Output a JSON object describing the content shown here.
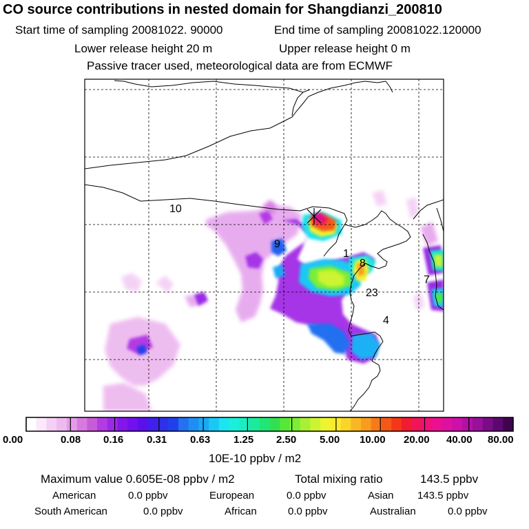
{
  "header": {
    "title": "CO  source contributions in nested domain for Shangdianzi_200810",
    "start_label": "Start time of sampling 20081022. 90000",
    "end_label": "End time of sampling 20081022.120000",
    "lower_label": "Lower release height   20 m",
    "upper_label": "Upper release height    0 m",
    "note": "Passive tracer used, meteorological data are from ECMWF"
  },
  "map": {
    "point_labels": [
      {
        "id": "10",
        "text": "10"
      },
      {
        "id": "9",
        "text": "9"
      },
      {
        "id": "1",
        "text": "1"
      },
      {
        "id": "8",
        "text": "8"
      },
      {
        "id": "7",
        "text": "7"
      },
      {
        "id": "23",
        "text": "23"
      },
      {
        "id": "4",
        "text": "4"
      }
    ]
  },
  "colorbar": {
    "ticks": [
      "0.00",
      "0.08",
      "0.16",
      "0.31",
      "0.63",
      "1.25",
      "2.50",
      "5.00",
      "10.00",
      "20.00",
      "40.00",
      "80.00"
    ],
    "colors": [
      "#ffffff",
      "#fbe8fb",
      "#f4d0f4",
      "#eebaf0",
      "#e49ce8",
      "#d77ae0",
      "#c85bd8",
      "#b43ae4",
      "#9a2ae6",
      "#8416ea",
      "#7210ee",
      "#5c10ee",
      "#4020ec",
      "#3030ea",
      "#2040ec",
      "#2470f0",
      "#1f8ef2",
      "#1aa8f4",
      "#1ac8f4",
      "#1ce4f0",
      "#1af0d8",
      "#1aeec0",
      "#1cea9c",
      "#20e678",
      "#30e050",
      "#56e838",
      "#7cee34",
      "#a8f034",
      "#ccf432",
      "#eef430",
      "#faec2c",
      "#fad428",
      "#f8b824",
      "#f89c20",
      "#f67a1c",
      "#f45818",
      "#f23818",
      "#f21c30",
      "#f01458",
      "#f0107a",
      "#ea1090",
      "#de10a0",
      "#cc10a8",
      "#b410a8",
      "#98109c",
      "#7a0c86",
      "#5c0870",
      "#40044e"
    ],
    "units": "10E-10 ppbv / m2"
  },
  "stats": {
    "max": "Maximum value  0.605E-08 ppbv / m2",
    "total_label": "Total mixing ratio",
    "total_value": "143.5 ppbv",
    "regions": [
      {
        "name": "American",
        "value": "0.0 ppbv"
      },
      {
        "name": "European",
        "value": "0.0 ppbv"
      },
      {
        "name": "Asian",
        "value": "143.5 ppbv"
      },
      {
        "name": "South American",
        "value": "0.0 ppbv"
      },
      {
        "name": "African",
        "value": "0.0 ppbv"
      },
      {
        "name": "Australian",
        "value": "0.0 ppbv"
      }
    ]
  }
}
